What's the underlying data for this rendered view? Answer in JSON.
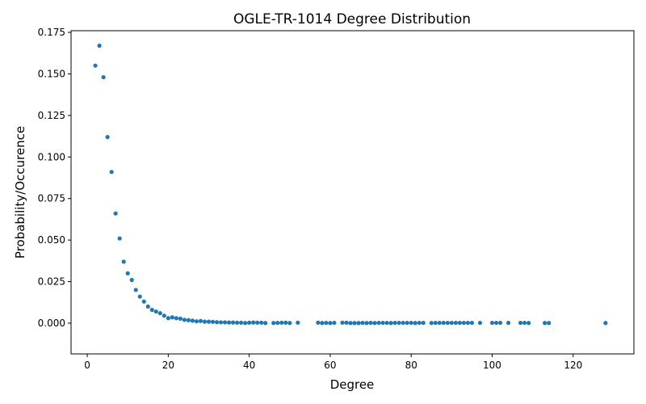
{
  "chart_data": {
    "type": "scatter",
    "title": "OGLE-TR-1014 Degree Distribution",
    "xlabel": "Degree",
    "ylabel": "Probability/Occurence",
    "xlim": [
      -4,
      135
    ],
    "ylim": [
      -0.0185,
      0.176
    ],
    "xticks": [
      0,
      20,
      40,
      60,
      80,
      100,
      120
    ],
    "yticks": [
      0.0,
      0.025,
      0.05,
      0.075,
      0.1,
      0.125,
      0.15,
      0.175
    ],
    "xtick_labels": [
      "0",
      "20",
      "40",
      "60",
      "80",
      "100",
      "120"
    ],
    "ytick_labels": [
      "0.000",
      "0.025",
      "0.050",
      "0.075",
      "0.100",
      "0.125",
      "0.150",
      "0.175"
    ],
    "grid": false,
    "marker_color": "#1f77b4",
    "points": [
      [
        2,
        0.155
      ],
      [
        3,
        0.167
      ],
      [
        4,
        0.148
      ],
      [
        5,
        0.112
      ],
      [
        6,
        0.091
      ],
      [
        7,
        0.066
      ],
      [
        8,
        0.051
      ],
      [
        9,
        0.037
      ],
      [
        10,
        0.03
      ],
      [
        11,
        0.026
      ],
      [
        12,
        0.02
      ],
      [
        13,
        0.016
      ],
      [
        14,
        0.013
      ],
      [
        15,
        0.01
      ],
      [
        16,
        0.008
      ],
      [
        17,
        0.007
      ],
      [
        18,
        0.006
      ],
      [
        19,
        0.0045
      ],
      [
        20,
        0.003
      ],
      [
        21,
        0.0035
      ],
      [
        22,
        0.003
      ],
      [
        23,
        0.0027
      ],
      [
        24,
        0.002
      ],
      [
        25,
        0.0018
      ],
      [
        26,
        0.0015
      ],
      [
        27,
        0.0011
      ],
      [
        28,
        0.0013
      ],
      [
        29,
        0.0009
      ],
      [
        30,
        0.0009
      ],
      [
        31,
        0.0008
      ],
      [
        32,
        0.0006
      ],
      [
        33,
        0.0005
      ],
      [
        34,
        0.0005
      ],
      [
        35,
        0.0004
      ],
      [
        36,
        0.0004
      ],
      [
        37,
        0.0003
      ],
      [
        38,
        0.0003
      ],
      [
        39,
        0.0001
      ],
      [
        40,
        0.0003
      ],
      [
        41,
        0.0004
      ],
      [
        42,
        0.0003
      ],
      [
        43,
        0.0003
      ],
      [
        44,
        0.0001
      ],
      [
        46,
        0.0001
      ],
      [
        47,
        0.0002
      ],
      [
        48,
        0.0003
      ],
      [
        49,
        0.0003
      ],
      [
        50,
        0.0001
      ],
      [
        52,
        0.0003
      ],
      [
        57,
        0.0003
      ],
      [
        58,
        0.0001
      ],
      [
        59,
        0.0002
      ],
      [
        60,
        0.0001
      ],
      [
        61,
        0.0002
      ],
      [
        63,
        0.0003
      ],
      [
        64,
        0.0003
      ],
      [
        65,
        0.0001
      ],
      [
        66,
        0.0001
      ],
      [
        67,
        0.0001
      ],
      [
        68,
        0.0002
      ],
      [
        69,
        0.0001
      ],
      [
        70,
        0.0002
      ],
      [
        71,
        0.0001
      ],
      [
        72,
        0.0002
      ],
      [
        73,
        0.0002
      ],
      [
        74,
        0.0002
      ],
      [
        75,
        0.0001
      ],
      [
        76,
        0.0002
      ],
      [
        77,
        0.0002
      ],
      [
        78,
        0.0002
      ],
      [
        79,
        0.0002
      ],
      [
        80,
        0.0002
      ],
      [
        81,
        0.0001
      ],
      [
        82,
        0.0002
      ],
      [
        83,
        0.0002
      ],
      [
        85,
        0.0001
      ],
      [
        86,
        0.0002
      ],
      [
        87,
        0.0002
      ],
      [
        88,
        0.0002
      ],
      [
        89,
        0.0002
      ],
      [
        90,
        0.0002
      ],
      [
        91,
        0.0002
      ],
      [
        92,
        0.0002
      ],
      [
        93,
        0.0002
      ],
      [
        94,
        0.0002
      ],
      [
        95,
        0.0002
      ],
      [
        97,
        0.0002
      ],
      [
        100,
        0.0002
      ],
      [
        101,
        0.0002
      ],
      [
        102,
        0.0002
      ],
      [
        104,
        0.0002
      ],
      [
        107,
        0.0002
      ],
      [
        108,
        0.0002
      ],
      [
        109,
        0.0001
      ],
      [
        113,
        0.0001
      ],
      [
        114,
        0.0001
      ],
      [
        128,
        0.0001
      ]
    ]
  }
}
